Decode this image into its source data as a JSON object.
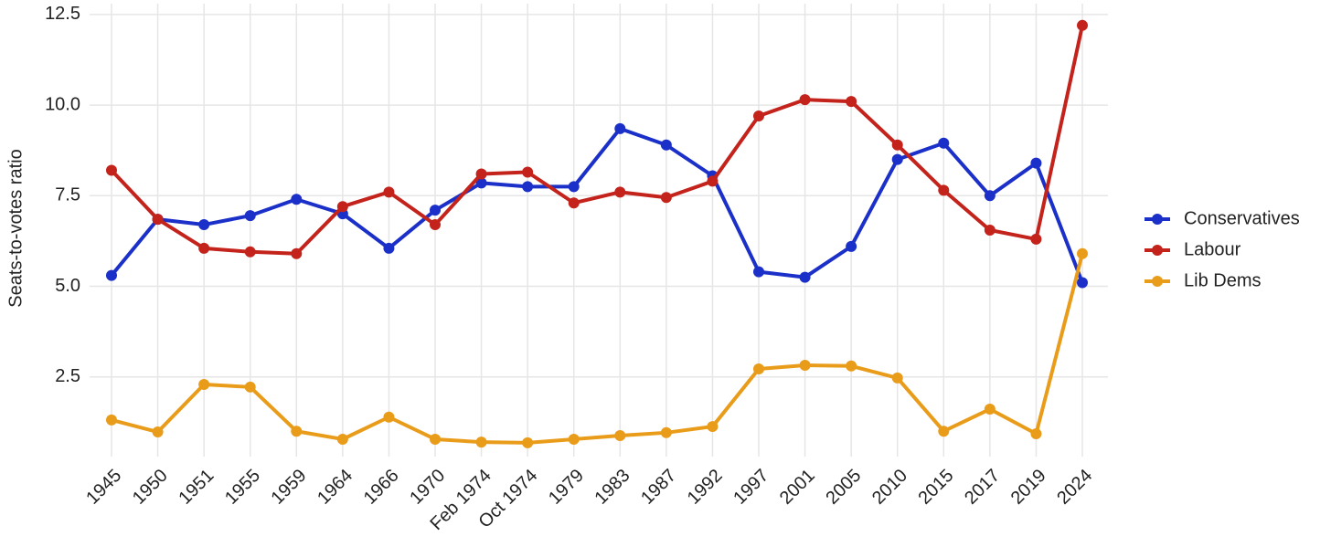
{
  "chart_data": {
    "type": "line",
    "y_label": "Seats-to-votes ratio",
    "categories": [
      "1945",
      "1950",
      "1951",
      "1955",
      "1959",
      "1964",
      "1966",
      "1970",
      "Feb 1974",
      "Oct 1974",
      "1979",
      "1983",
      "1987",
      "1992",
      "1997",
      "2001",
      "2005",
      "2010",
      "2015",
      "2017",
      "2019",
      "2024"
    ],
    "series": [
      {
        "name": "Conservatives",
        "color": "#1b30c8",
        "values": [
          5.3,
          6.85,
          6.7,
          6.95,
          7.4,
          7.0,
          6.05,
          7.1,
          7.85,
          7.75,
          7.75,
          9.35,
          8.9,
          8.05,
          5.4,
          5.25,
          6.1,
          8.5,
          8.95,
          7.5,
          8.4,
          5.1
        ]
      },
      {
        "name": "Labour",
        "color": "#c4231c",
        "values": [
          8.2,
          6.85,
          6.05,
          5.95,
          5.9,
          7.2,
          7.6,
          6.7,
          8.1,
          8.15,
          7.3,
          7.6,
          7.45,
          7.9,
          9.7,
          10.15,
          10.1,
          8.9,
          7.65,
          6.55,
          6.3,
          12.2
        ]
      },
      {
        "name": "Lib Dems",
        "color": "#e99c1a",
        "values": [
          1.31,
          0.98,
          2.29,
          2.22,
          1.0,
          0.78,
          1.39,
          0.78,
          0.7,
          0.68,
          0.78,
          0.88,
          0.96,
          1.13,
          2.72,
          2.82,
          2.8,
          2.47,
          1.0,
          1.61,
          0.93,
          5.9
        ]
      }
    ],
    "ylim": [
      0.3,
      12.8
    ],
    "yticks": [
      2.5,
      {
        "value": 5,
        "label": "5.0"
      },
      7.5,
      {
        "value": 10,
        "label": "10.0"
      },
      12.5
    ],
    "grid": true,
    "legend": "right"
  }
}
